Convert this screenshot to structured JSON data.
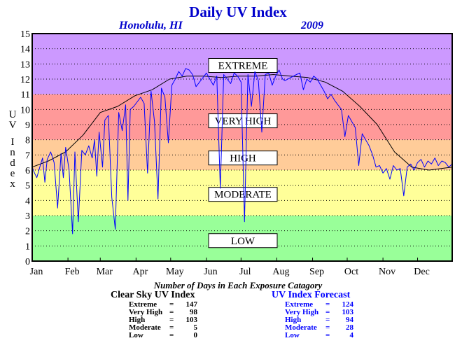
{
  "chart_data": {
    "type": "line",
    "title": "Daily UV Index",
    "subtitle_location": "Honolulu, HI",
    "subtitle_year": "2009",
    "ylabel": "UV Index",
    "xlabel": "",
    "ylim": [
      0,
      15
    ],
    "yticks": [
      "0",
      "1",
      "2",
      "3",
      "4",
      "5",
      "6",
      "7",
      "8",
      "9",
      "10",
      "11",
      "12",
      "13",
      "14",
      "15"
    ],
    "xticks": [
      "Jan",
      "Feb",
      "Mar",
      "Apr",
      "May",
      "Jun",
      "Jul",
      "Aug",
      "Sep",
      "Oct",
      "Nov",
      "Dec"
    ],
    "grid": true,
    "bands": [
      {
        "label": "LOW",
        "from": 0,
        "to": 3,
        "color": "#99ff99"
      },
      {
        "label": "MODERATE",
        "from": 3,
        "to": 6,
        "color": "#ffff99"
      },
      {
        "label": "HIGH",
        "from": 6,
        "to": 8,
        "color": "#ffcc99"
      },
      {
        "label": "VERY HIGH",
        "from": 8,
        "to": 11,
        "color": "#ff9999"
      },
      {
        "label": "EXTREME",
        "from": 11,
        "to": 15,
        "color": "#cc99ff"
      }
    ],
    "series": [
      {
        "name": "Clear Sky UV Index",
        "color": "#000000",
        "x": [
          1,
          15,
          30,
          45,
          60,
          75,
          90,
          105,
          120,
          135,
          150,
          165,
          180,
          195,
          210,
          225,
          240,
          255,
          270,
          285,
          300,
          315,
          330,
          345,
          365
        ],
        "values": [
          6.2,
          6.6,
          7.2,
          8.3,
          9.8,
          10.2,
          10.9,
          11.3,
          12.0,
          12.2,
          12.2,
          12.1,
          12.2,
          12.2,
          12.3,
          12.2,
          12.1,
          11.8,
          11.2,
          10.2,
          9.0,
          7.2,
          6.2,
          6.0,
          6.2
        ]
      },
      {
        "name": "UV Index Forecast",
        "color": "#0000ff",
        "x": [
          1,
          3,
          5,
          8,
          10,
          12,
          14,
          17,
          20,
          23,
          26,
          28,
          30,
          33,
          36,
          38,
          41,
          44,
          47,
          50,
          53,
          55,
          57,
          59,
          62,
          64,
          67,
          70,
          73,
          76,
          79,
          82,
          84,
          86,
          89,
          92,
          95,
          98,
          101,
          104,
          107,
          110,
          113,
          116,
          119,
          122,
          125,
          128,
          131,
          134,
          137,
          140,
          143,
          146,
          149,
          152,
          155,
          158,
          161,
          164,
          167,
          170,
          173,
          176,
          179,
          182,
          185,
          188,
          191,
          194,
          197,
          200,
          203,
          206,
          209,
          212,
          215,
          218,
          220,
          230,
          233,
          236,
          239,
          242,
          245,
          248,
          251,
          254,
          257,
          260,
          263,
          266,
          269,
          272,
          275,
          278,
          281,
          284,
          287,
          290,
          293,
          296,
          299,
          302,
          305,
          308,
          311,
          314,
          317,
          320,
          323,
          326,
          329,
          332,
          335,
          338,
          341,
          344,
          347,
          350,
          353,
          356,
          359,
          362,
          365
        ],
        "values": [
          6.2,
          5.8,
          5.5,
          6.3,
          6.8,
          5.2,
          6.7,
          7.2,
          6.5,
          3.5,
          7.1,
          5.5,
          7.5,
          6.0,
          1.8,
          7.2,
          2.6,
          7.3,
          7.0,
          7.6,
          6.8,
          8.0,
          5.6,
          8.5,
          6.2,
          9.3,
          9.6,
          4.2,
          2.1,
          9.8,
          8.6,
          10.3,
          4.0,
          10.0,
          10.2,
          10.5,
          10.8,
          10.4,
          5.8,
          11.2,
          9.2,
          4.1,
          11.4,
          10.8,
          7.8,
          11.6,
          12.0,
          12.5,
          12.2,
          12.7,
          12.6,
          12.3,
          11.5,
          11.8,
          12.1,
          12.4,
          12.0,
          11.6,
          12.2,
          4.8,
          12.3,
          12.0,
          11.7,
          12.4,
          12.2,
          11.8,
          2.6,
          12.3,
          10.2,
          12.5,
          11.9,
          8.5,
          12.3,
          12.4,
          11.6,
          12.2,
          12.6,
          12.0,
          11.9,
          12.3,
          12.4,
          11.3,
          12.0,
          11.8,
          12.2,
          12.0,
          11.6,
          11.2,
          10.7,
          11.0,
          10.6,
          10.3,
          10.0,
          8.2,
          9.6,
          9.2,
          8.8,
          6.3,
          8.4,
          8.0,
          7.6,
          7.0,
          6.2,
          6.3,
          5.8,
          6.1,
          5.4,
          6.3,
          6.0,
          6.1,
          4.3,
          6.2,
          6.4,
          6.0,
          6.5,
          6.7,
          6.2,
          6.6,
          6.4,
          6.8,
          6.3,
          6.6,
          6.5,
          6.2,
          6.4
        ]
      }
    ]
  },
  "counts": {
    "caption": "Number of Days in Each Exposure Catagory",
    "clear_sky": {
      "title": "Clear Sky UV Index",
      "rows": [
        {
          "label": "Extreme",
          "value": "147"
        },
        {
          "label": "Very High",
          "value": "98"
        },
        {
          "label": "High",
          "value": "103"
        },
        {
          "label": "Moderate",
          "value": "5"
        },
        {
          "label": "Low",
          "value": "0"
        }
      ]
    },
    "forecast": {
      "title": "UV Index Forecast",
      "rows": [
        {
          "label": "Extreme",
          "value": "124"
        },
        {
          "label": "Very High",
          "value": "103"
        },
        {
          "label": "High",
          "value": "94"
        },
        {
          "label": "Moderate",
          "value": "28"
        },
        {
          "label": "Low",
          "value": "4"
        }
      ]
    }
  }
}
